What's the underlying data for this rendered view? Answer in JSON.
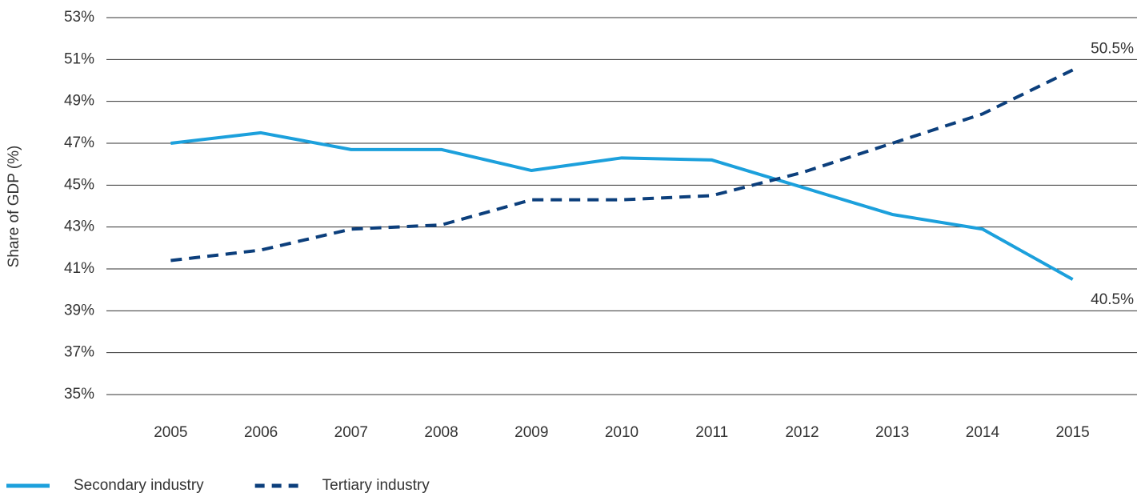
{
  "chart_data": {
    "type": "line",
    "y_label": "Share of GDP (%)",
    "categories": [
      "2005",
      "2006",
      "2007",
      "2008",
      "2009",
      "2010",
      "2011",
      "2012",
      "2013",
      "2014",
      "2015"
    ],
    "series": [
      {
        "name": "Secondary industry",
        "color": "#1ca0dc",
        "dashed": false,
        "values": [
          47.0,
          47.5,
          46.7,
          46.7,
          45.7,
          46.3,
          46.2,
          44.9,
          43.6,
          42.9,
          40.5
        ],
        "value_labels": [
          null,
          null,
          null,
          null,
          null,
          null,
          null,
          null,
          null,
          null,
          "40.5%"
        ]
      },
      {
        "name": "Tertiary industry",
        "color": "#0c3f7c",
        "dashed": true,
        "values": [
          41.4,
          41.9,
          42.9,
          43.1,
          44.3,
          44.3,
          44.5,
          45.6,
          47.0,
          48.4,
          50.5
        ],
        "value_labels": [
          null,
          null,
          null,
          null,
          null,
          null,
          null,
          null,
          null,
          null,
          "50.5%"
        ]
      }
    ],
    "ylim": [
      35,
      53
    ],
    "yticks": [
      {
        "value": 35,
        "label": "35%"
      },
      {
        "value": 37,
        "label": "37%"
      },
      {
        "value": 39,
        "label": "39%"
      },
      {
        "value": 41,
        "label": "41%"
      },
      {
        "value": 43,
        "label": "43%"
      },
      {
        "value": 45,
        "label": "45%"
      },
      {
        "value": 47,
        "label": "47%"
      },
      {
        "value": 49,
        "label": "49%"
      },
      {
        "value": 51,
        "label": "51%"
      },
      {
        "value": 53,
        "label": "53%"
      }
    ],
    "grid": true,
    "legend": "bottom-left"
  }
}
